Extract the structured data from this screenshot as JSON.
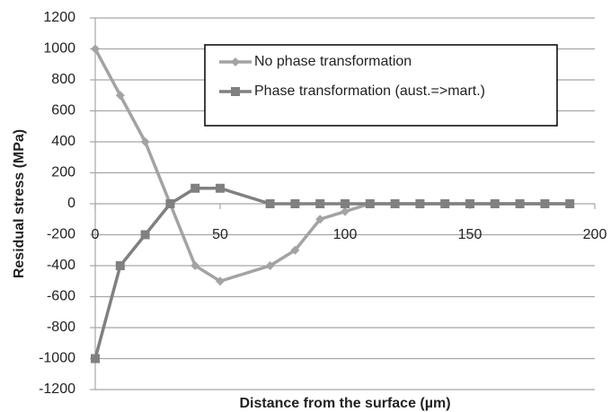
{
  "chart_data": {
    "type": "line",
    "x_label": "Distance from the surface (µm)",
    "y_label": "Residual stress (MPa)",
    "x": [
      0,
      10,
      20,
      30,
      40,
      50,
      70,
      80,
      90,
      100,
      110,
      120,
      130,
      140,
      150,
      160,
      170,
      180,
      190
    ],
    "series": [
      {
        "name": "No phase transformation",
        "color": "#a3a3a3",
        "marker": "diamond",
        "values": [
          1000,
          700,
          400,
          0,
          -400,
          -500,
          -400,
          -300,
          -100,
          -50,
          0,
          0,
          0,
          0,
          0,
          0,
          0,
          0,
          0
        ]
      },
      {
        "name": "Phase transformation (aust.=>mart.)",
        "color": "#808080",
        "marker": "square",
        "values": [
          -1000,
          -400,
          -200,
          0,
          100,
          100,
          0,
          0,
          0,
          0,
          0,
          0,
          0,
          0,
          0,
          0,
          0,
          0,
          0
        ]
      }
    ],
    "xlim": [
      0,
      200
    ],
    "xticks": [
      0,
      50,
      100,
      150,
      200
    ],
    "ylim": [
      -1200,
      1200
    ],
    "yticks": [
      -1200,
      -1000,
      -800,
      -600,
      -400,
      -200,
      0,
      200,
      400,
      600,
      800,
      1000,
      1200
    ],
    "grid": true,
    "legend": "top-right"
  }
}
